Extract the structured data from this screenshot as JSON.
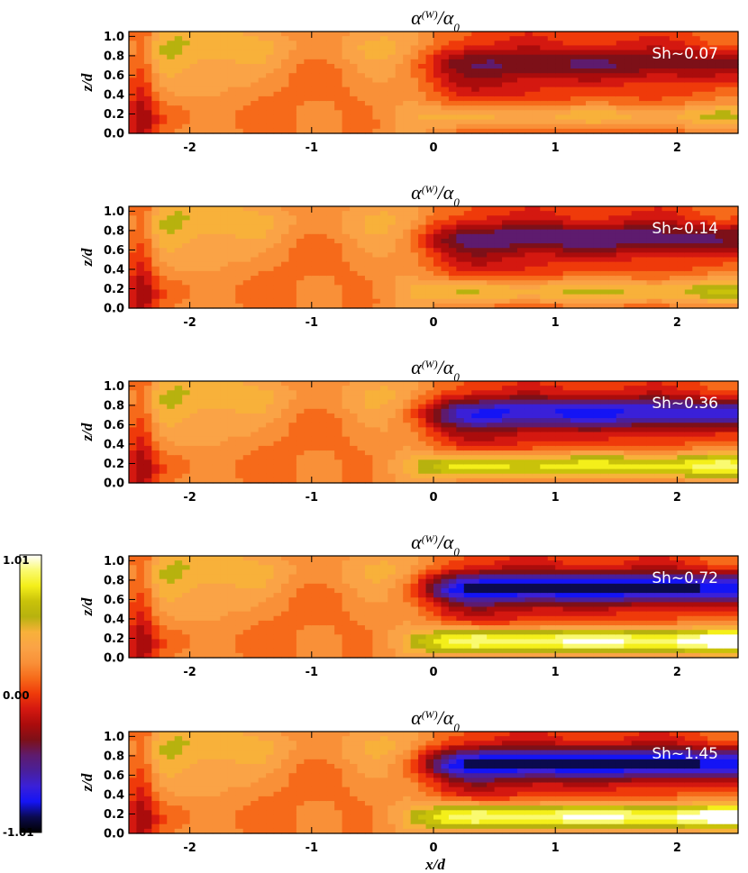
{
  "chart_data": {
    "type": "heatmap",
    "x_range": [
      -2.5,
      2.5
    ],
    "y_range": [
      0,
      1.05
    ],
    "x_ticks": [
      "-2",
      "-1",
      "0",
      "1",
      "2"
    ],
    "y_ticks": [
      "0.0",
      "0.2",
      "0.4",
      "0.6",
      "0.8",
      "1.0"
    ],
    "ylabel": "z/d",
    "xlabel": "x/d",
    "colorbar": {
      "min": -1.01,
      "max": 1.01,
      "tick_labels": [
        "1.01",
        "0.00",
        "-1.01"
      ],
      "colormap": [
        "#000000",
        "#0b0a4e",
        "#1414f5",
        "#3a20d8",
        "#4a1f9a",
        "#5e1b6e",
        "#7d1018",
        "#aa0c0c",
        "#d41810",
        "#ef3a0a",
        "#f66a1a",
        "#f99038",
        "#faa346",
        "#f8b13a",
        "#b7b20e",
        "#c9c20a",
        "#f4ef1a",
        "#fafa70",
        "#ffffff"
      ]
    },
    "panels": [
      {
        "title_main": "α",
        "title_super": "(W)",
        "title_den": "/α",
        "title_sub": "0",
        "sh_label": "Sh~0.07",
        "sh": 0.07
      },
      {
        "title_main": "α",
        "title_super": "(W)",
        "title_den": "/α",
        "title_sub": "0",
        "sh_label": "Sh~0.14",
        "sh": 0.14
      },
      {
        "title_main": "α",
        "title_super": "(W)",
        "title_den": "/α",
        "title_sub": "0",
        "sh_label": "Sh~0.36",
        "sh": 0.36
      },
      {
        "title_main": "α",
        "title_super": "(W)",
        "title_den": "/α",
        "title_sub": "0",
        "sh_label": "Sh~0.72",
        "sh": 0.72
      },
      {
        "title_main": "α",
        "title_super": "(W)",
        "title_den": "/α",
        "title_sub": "0",
        "sh_label": "Sh~1.45",
        "sh": 1.45
      }
    ]
  }
}
